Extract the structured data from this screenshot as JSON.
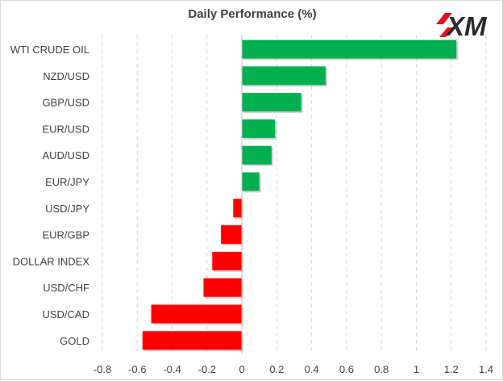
{
  "chart_data": {
    "type": "bar",
    "orientation": "horizontal",
    "title": "Daily Performance  (%)",
    "categories": [
      "WTI CRUDE OIL",
      "NZD/USD",
      "GBP/USD",
      "EUR/USD",
      "AUD/USD",
      "EUR/JPY",
      "USD/JPY",
      "EUR/GBP",
      "DOLLAR INDEX",
      "USD/CHF",
      "USD/CAD",
      "GOLD"
    ],
    "values": [
      1.23,
      0.48,
      0.34,
      0.19,
      0.17,
      0.1,
      -0.05,
      -0.12,
      -0.17,
      -0.22,
      -0.52,
      -0.57
    ],
    "xlim": [
      -0.8,
      1.4
    ],
    "xticks": [
      "-0.8",
      "-0.6",
      "-0.4",
      "-0.2",
      "0",
      "0.2",
      "0.4",
      "0.6",
      "0.8",
      "1",
      "1.2",
      "1.4"
    ],
    "grid": "vertical dashed",
    "colors": {
      "positive": "#00b050",
      "negative": "#ff0000"
    },
    "legend": "none"
  },
  "brand": {
    "logo_text": "XM",
    "logo_color": "#2b2b2b",
    "accent": "#e4121b"
  }
}
